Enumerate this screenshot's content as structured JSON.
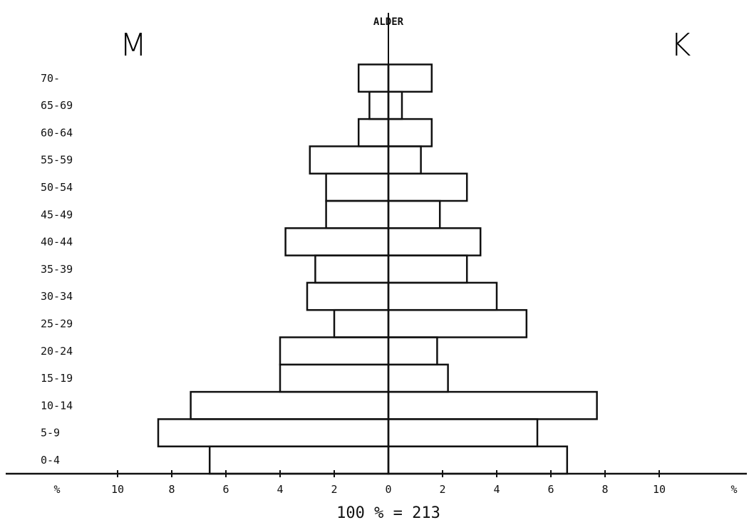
{
  "chart_data": {
    "type": "population-pyramid",
    "title": "ALDER",
    "left_label": "M",
    "right_label": "K",
    "footer": "100 % = 213",
    "xlim": [
      -10,
      10
    ],
    "x_ticks_left": [
      "10",
      "8",
      "6",
      "4",
      "2"
    ],
    "x_ticks_right": [
      "2",
      "4",
      "6",
      "8",
      "10"
    ],
    "x_tick_values": [
      2,
      4,
      6,
      8,
      10
    ],
    "center_tick": "0",
    "percent_label": "%",
    "categories": [
      "0-4",
      "5-9",
      "10-14",
      "15-19",
      "20-24",
      "25-29",
      "30-34",
      "35-39",
      "40-44",
      "45-49",
      "50-54",
      "55-59",
      "60-64",
      "65-69",
      "70-"
    ],
    "series": [
      {
        "name": "M",
        "values": [
          6.6,
          8.5,
          7.3,
          4.0,
          4.0,
          2.0,
          3.0,
          2.7,
          3.8,
          2.3,
          2.3,
          2.9,
          1.1,
          0.7,
          1.1
        ]
      },
      {
        "name": "K",
        "values": [
          6.6,
          5.5,
          7.7,
          2.2,
          1.8,
          5.1,
          4.0,
          2.9,
          3.4,
          1.9,
          2.9,
          1.2,
          1.6,
          0.5,
          1.6
        ]
      }
    ]
  }
}
